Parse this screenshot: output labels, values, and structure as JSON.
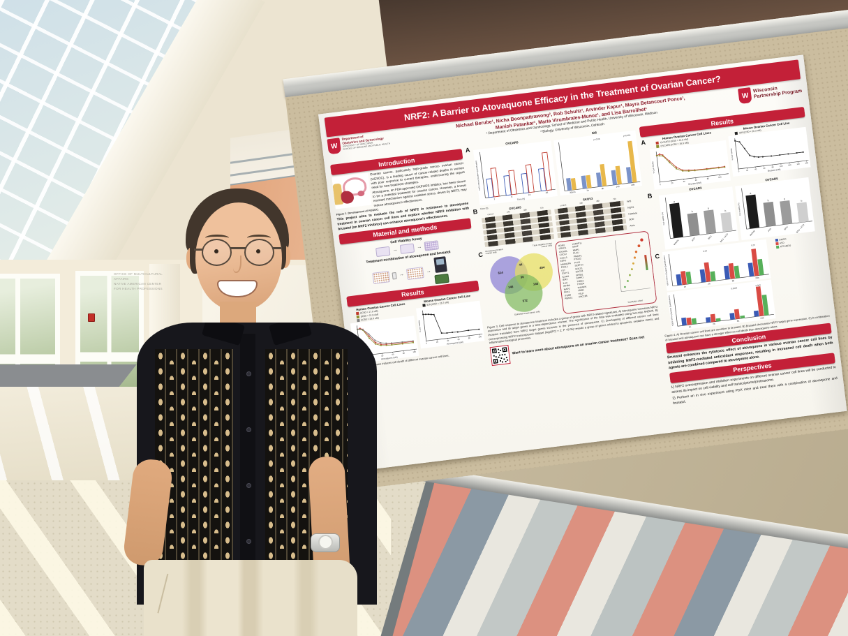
{
  "scene": {
    "wall_sign": [
      "OFFICE OF MULTICULTURAL AFFAIRS",
      "NATIVE AMERICAN CENTER",
      "FOR HEALTH PROFESSIONS"
    ]
  },
  "poster": {
    "title": "NRF2: A Barrier to Atovaquone Efficacy in the Treatment of Ovarian Cancer?",
    "authors1": "Michael Berube¹, Nicha Boonpattrawong², Rob Schultz¹, Arvinder Kapur¹, Mayra Betancourt Ponce¹,",
    "authors2": "Manish Patankar¹, Maria Virumbrales-Munoz¹, and Lisa Barroilhet¹",
    "affil1": "¹ Department of Obstetrics and Gynecology, School of Medicine and Public Health, University of Wisconsin, Madison",
    "affil2": "² Biology, University of Wisconsin, Oshkosh",
    "logo_left": {
      "w": "W",
      "l1": "Department of",
      "l2": "Obstetrics and Gynecology",
      "l3": "UNIVERSITY OF WISCONSIN",
      "l4": "SCHOOL OF MEDICINE AND PUBLIC HEALTH"
    },
    "logo_right": {
      "w": "W",
      "l1": "Wisconsin",
      "l2": "Partnership Program"
    },
    "colors": {
      "band": "#c32038",
      "maroon": "#8c1d2c"
    },
    "intro": {
      "heading": "Introduction",
      "b1": "Ovarian cancer, particularly high-grade serous ovarian cancer (HGSOC), is a leading cause of cancer-related deaths in women with poor response to current therapies, underscoring the urgent need for new treatment strategies.",
      "b2": "Atovaquone, an FDA-approved OXPHOS inhibitor, has been shown to be a potential treatment for ovarian cancer. However, a known resistant mechanism against oxidative stress, driven by NRF2, may reduce atovaquone's effectiveness.",
      "fig1": "Figure 1. Development of HGSOC.",
      "aim": "This project aims to evaluate the role of NRF2 in resistance to atovaquone treatment in ovarian cancer cell lines and explore whether NRF2 inhibition with brusatol (an NRF2 inhibitor) can enhance atovaquone's effectiveness."
    },
    "methods": {
      "heading": "Material and methods",
      "sub1": "Cell Viability Assay",
      "sub2": "Treatment combination of atovaquone and brusatol"
    },
    "left_results": {
      "heading": "Results",
      "t1": "Human Ovarian Cancer Cell Lines",
      "t2": "Mouse Ovarian Cancer Cell Line",
      "legend1": [
        {
          "name": "(IC50 = 17.8 uM)",
          "color": "#c0392b"
        },
        {
          "name": "(IC50 = 21.8 uM)",
          "color": "#8f8f2f"
        },
        {
          "name": "(IC50 = 24.8 uM)",
          "color": "#7f7f7f"
        }
      ],
      "legend2": [
        {
          "name": "ID8 (IC50 = 18.7 uM)",
          "color": "#222222"
        }
      ],
      "caption": "Figure 2. Atovaquone induces cell death of different ovarian cancer cell lines."
    },
    "mid": {
      "labelA": "A",
      "labelB": "B",
      "labelC": "C",
      "a1_title": "OVCAR5",
      "a2_title": "ID8",
      "blot_time": "Time (h)",
      "blot1": {
        "title": "OVCAR5",
        "lanes": [
          "control",
          "24h",
          "48h",
          "72h"
        ],
        "rows": [
          "",
          "",
          "",
          "",
          ""
        ]
      },
      "blot2": {
        "title": "SKOV3",
        "lanes": [
          "control",
          "24h",
          "48h",
          "72h"
        ],
        "rows": [
          "",
          "",
          "",
          "",
          ""
        ]
      },
      "blot_rows": [
        "Nrf2",
        "NQO1",
        "Catalase",
        "SOD",
        "Actin"
      ],
      "venn": {
        "l1": "Atovaquone treated\novarian cells",
        "l2": "Triple negative breast\ncancer cells",
        "l3": "Epithelial breast cancer cells",
        "n1": 614,
        "n2": 494,
        "n3": 572,
        "n12": 44,
        "n13": 146,
        "n23": 135,
        "n123": 36
      },
      "genes1": [
        "ROM1",
        "CRAC1",
        "CKAP2L",
        "CXCL2",
        "CXCL3",
        "EDN1",
        "MAM11PA",
        "FOSL1",
        "FJT",
        "GYPT1",
        "ICAM1",
        "IER3",
        "IL1A",
        "INHBA",
        "MAP2",
        "PKX1",
        "ITGB8",
        "RGNS1"
      ],
      "genes2": [
        "LURAP1L",
        "MAFF",
        "MMP1",
        "PLAU",
        "PMAIP1",
        "PTGS2",
        "PTX3",
        "SERTC1",
        "SOCS1",
        "SOCS3",
        "SPSB1",
        "SPHK1",
        "THBS1",
        "THSD4",
        "TNFAIP6",
        "TRIB1",
        "TSLP",
        "UNC13B"
      ],
      "dot_xlabel": "-log10(adj p-value)",
      "caption": "Figure 3. Cell response to atovaquone treatment includes a group of genes with NRF2-related signatures. A) Atovaquone increases NRF2 expression and its target genes in a time-dependence manner. The significance of the data was evaluated using two-way ANOVA. B) Proteins translated from NRF2 target genes increase in the presence of atovaquone. C) Overlapping of different cancer cell lines overexpressing NRF2 transcriptomic dataset (log2|FC| > 2; P <0.05) reveals a group of genes related to apoptosis, oxidative stress, and inflammation biological processes.",
      "qr_text": "Want to learn more about atovaquone as an ovarian cancer treatment? Scan me!"
    },
    "right": {
      "heading": "Results",
      "labelA": "A",
      "labelB": "B",
      "labelC": "C",
      "a1_title": "Human Ovarian Cancer Cell Lines",
      "a2_title": "Mouse Ovarian Cancer Cell Line",
      "b1_title": "OVCAR3",
      "b2_title": "OVCAR5",
      "legendA1": [
        {
          "name": "OVCAR3 (IC50 = 21.6 nM)",
          "color": "#c0392b"
        },
        {
          "name": "OVCAR5 (IC50 = 16.9 nM)",
          "color": "#8f8f2f"
        }
      ],
      "legendA2": [
        {
          "name": "ID8 (IC50 = 20.3 nM)",
          "color": "#222222"
        }
      ],
      "legendC": [
        {
          "name": "DMSO",
          "color": "#3b5bb5"
        },
        {
          "name": "ATO",
          "color": "#d94b44"
        },
        {
          "name": "ATO+BRU",
          "color": "#57b05a"
        }
      ],
      "caption": "Figure 4. A) Ovarian cancer cell lines are sensitive to brusatol. B) Brusatol decreases NRF2 target gene expression. C) A combination of brusatol and atovaquone can have a stronger effect on cell death than atovaquone alone.",
      "conclusion_heading": "Conclusion",
      "conclusion": "Brusatol enhances the cytotoxic effect of atovaquone in various ovarian cancer cell lines by inhibiting NRF2-mediated antioxidant responses, resulting in increased cell death when both agents are combined compared to atovaquone alone.",
      "perspectives_heading": "Perspectives",
      "perspectives": [
        "1) NRF2 overexpression and inhibition experiments on different ovarian cancer cell lines will be conducted to assess its impact on cell viability and cell transcriptome/proteasome.",
        "2) Perform an in vivo experiment using PDX mice and treat them with a combination of atovaquone and brusatol."
      ]
    },
    "figures": {
      "f2h": {
        "type": "dose",
        "xmax": 105,
        "ymax": 115,
        "xticks": [
          0,
          20,
          40,
          60,
          80,
          100
        ],
        "xlabel": "Atovaquone (uM)",
        "ylabel": "% Cell Viability",
        "curves": [
          {
            "color": "#c0392b",
            "points": [
              [
                0,
                100
              ],
              [
                5,
                103
              ],
              [
                10,
                98
              ],
              [
                20,
                70
              ],
              [
                30,
                44
              ],
              [
                40,
                34
              ],
              [
                50,
                32
              ],
              [
                60,
                31
              ],
              [
                80,
                30
              ],
              [
                100,
                30
              ]
            ]
          },
          {
            "color": "#8f8f2f",
            "points": [
              [
                0,
                100
              ],
              [
                5,
                99
              ],
              [
                10,
                95
              ],
              [
                20,
                62
              ],
              [
                30,
                38
              ],
              [
                40,
                30
              ],
              [
                50,
                28
              ],
              [
                60,
                27
              ],
              [
                80,
                26
              ],
              [
                100,
                26
              ]
            ]
          },
          {
            "color": "#7f7f7f",
            "points": [
              [
                0,
                101
              ],
              [
                5,
                100
              ],
              [
                10,
                97
              ],
              [
                20,
                78
              ],
              [
                30,
                52
              ],
              [
                40,
                40
              ],
              [
                50,
                36
              ],
              [
                60,
                34
              ],
              [
                80,
                33
              ],
              [
                100,
                32
              ]
            ]
          }
        ]
      },
      "f2m": {
        "type": "dose",
        "xmax": 105,
        "ymax": 115,
        "xticks": [
          0,
          20,
          40,
          60,
          80,
          100
        ],
        "xlabel": "Atovaquone (uM)",
        "ylabel": "% Cell Viability",
        "curves": [
          {
            "color": "#222222",
            "points": [
              [
                0,
                100
              ],
              [
                5,
                99
              ],
              [
                10,
                98
              ],
              [
                15,
                96
              ],
              [
                20,
                94
              ],
              [
                30,
                22
              ],
              [
                40,
                20
              ],
              [
                50,
                20
              ],
              [
                60,
                19
              ],
              [
                80,
                20
              ],
              [
                100,
                19
              ]
            ]
          }
        ]
      },
      "a1": {
        "type": "bars",
        "ymax": 2.5,
        "xlabel": "Time (h)",
        "ylabel": "NRF2 mRNA (Relative Quantification)",
        "categories": [
          "1",
          "8",
          "24",
          "48"
        ],
        "series": [
          {
            "name": "DMSO",
            "color": "#3b5bb5",
            "outline": true,
            "values": [
              1.0,
              1.05,
              1.05,
              1.2
            ]
          },
          {
            "name": "ATO",
            "color": "#c0392b",
            "outline": true,
            "values": [
              1.55,
              1.3,
              1.5,
              2.05
            ]
          }
        ]
      },
      "a2": {
        "type": "bars",
        "ymax": 4,
        "categories": [
          "30min",
          "1h",
          "8h",
          "24h",
          "48h"
        ],
        "series": [
          {
            "name": "DMSO",
            "color": "#7b93c9",
            "values": [
              1.0,
              1.05,
              1.15,
              1.2,
              1.3
            ]
          },
          {
            "name": "ATO",
            "color": "#e8b84b",
            "values": [
              0.95,
              1.05,
              1.8,
              1.5,
              3.4
            ]
          }
        ],
        "annotations": [
          {
            "g": 2,
            "text": "p=0.08"
          },
          {
            "g": 4,
            "text": "p<0.001"
          }
        ]
      },
      "b1": {
        "type": "bars",
        "ymax": 120,
        "rot": true,
        "ylabel": "Cell viability (%)",
        "categories": [
          "Vehicle",
          "ATO",
          "BRU",
          "BRU + ATO"
        ],
        "colors": [
          "#1c1c1c",
          "#8f8f8f",
          "#9c9c9c",
          "#cfcfcf"
        ],
        "letters": [
          "a",
          "b",
          "b",
          "b"
        ],
        "series": [
          {
            "values": [
              100,
              65,
              68,
              55
            ]
          }
        ]
      },
      "b2": {
        "type": "bars",
        "ymax": 120,
        "rot": true,
        "ylabel": "Cell viability (%)",
        "categories": [
          "Vehicle",
          "ATO",
          "BRU",
          "BRU + ATO"
        ],
        "colors": [
          "#1c1c1c",
          "#8f8f8f",
          "#9c9c9c",
          "#cfcfcf"
        ],
        "letters": [
          "a",
          "b",
          "b",
          "b"
        ],
        "series": [
          {
            "values": [
              97,
              70,
              68,
              57
            ]
          }
        ]
      },
      "c1": {
        "type": "bars",
        "ymax": 2.5,
        "ylabel": "NRF2 mRNA (Relative Quantification)",
        "categories": [
          "1h",
          "2h",
          "8h",
          "24h"
        ],
        "series": [
          {
            "name": "DMSO",
            "color": "#3b5bb5",
            "values": [
              0.85,
              1.0,
              1.05,
              1.05
            ]
          },
          {
            "name": "ATO",
            "color": "#d94b44",
            "values": [
              1.05,
              1.5,
              1.2,
              2.1
            ]
          },
          {
            "name": "ATO+BRU",
            "color": "#57b05a",
            "values": [
              0.95,
              0.75,
              0.95,
              1.25
            ]
          }
        ],
        "annotations": [
          {
            "g": 1,
            "text": "0.04"
          },
          {
            "g": 3,
            "text": "0.07"
          }
        ]
      },
      "c2": {
        "type": "bars",
        "ymax": 5,
        "ylabel": "NQO1 mRNA (Relative Quantification)",
        "categories": [
          "1h",
          "2h",
          "8h",
          "24h"
        ],
        "series": [
          {
            "name": "DMSO",
            "color": "#3b5bb5",
            "values": [
              1.2,
              0.8,
              1.0,
              0.9
            ]
          },
          {
            "name": "ATO",
            "color": "#d94b44",
            "values": [
              1.1,
              1.2,
              1.5,
              4.6
            ]
          },
          {
            "name": "ATO+BRU",
            "color": "#57b05a",
            "values": [
              0.9,
              0.45,
              0.4,
              3.2
            ]
          }
        ],
        "annotations": [
          {
            "g": 2,
            "text": "0.0004"
          },
          {
            "g": 3,
            "text": "0.002"
          }
        ]
      },
      "f4h": {
        "type": "dose",
        "xmax": 115,
        "ymax": 115,
        "xticks": [
          0,
          20,
          40,
          60,
          80,
          100
        ],
        "xlabel": "Brusatol (nM)",
        "ylabel": "% Cell Viability",
        "curves": [
          {
            "color": "#c0392b",
            "points": [
              [
                0,
                100
              ],
              [
                5,
                104
              ],
              [
                10,
                99
              ],
              [
                20,
                74
              ],
              [
                30,
                48
              ],
              [
                40,
                34
              ],
              [
                50,
                31
              ],
              [
                60,
                29
              ],
              [
                80,
                28
              ],
              [
                100,
                28
              ],
              [
                110,
                28
              ]
            ]
          },
          {
            "color": "#8f8f2f",
            "points": [
              [
                0,
                100
              ],
              [
                5,
                98
              ],
              [
                10,
                96
              ],
              [
                20,
                68
              ],
              [
                30,
                42
              ],
              [
                40,
                31
              ],
              [
                50,
                28
              ],
              [
                60,
                27
              ],
              [
                80,
                26
              ],
              [
                100,
                26
              ],
              [
                110,
                26
              ]
            ]
          }
        ]
      },
      "f4m": {
        "type": "dose",
        "xmax": 165,
        "ymax": 115,
        "xticks": [
          0,
          20,
          40,
          60,
          80,
          100,
          120,
          140,
          160
        ],
        "xlabel": "Brusatol (nM)",
        "ylabel": "% Cell Viability",
        "curves": [
          {
            "color": "#222222",
            "points": [
              [
                0,
                106
              ],
              [
                10,
                100
              ],
              [
                20,
                73
              ],
              [
                30,
                45
              ],
              [
                40,
                38
              ],
              [
                50,
                35
              ],
              [
                60,
                34
              ],
              [
                80,
                33
              ],
              [
                100,
                33
              ],
              [
                120,
                33
              ],
              [
                140,
                33
              ],
              [
                155,
                33
              ]
            ]
          }
        ]
      }
    }
  }
}
